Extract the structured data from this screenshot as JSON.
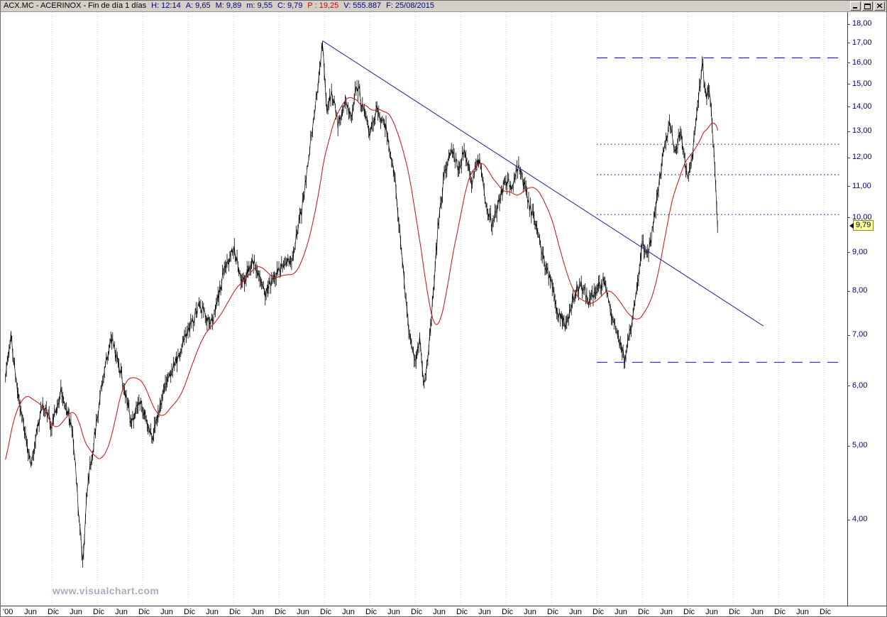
{
  "window": {
    "title_segments": [
      {
        "text": "ACX.MC - ACERINOX - Fin de día 1 días",
        "color": "#000000"
      },
      {
        "text": "H: 12:14",
        "color": "#000080"
      },
      {
        "text": "A: 9,65",
        "color": "#000080"
      },
      {
        "text": "M: 9,89",
        "color": "#000080"
      },
      {
        "text": "m: 9,55",
        "color": "#000080"
      },
      {
        "text": "C: 9,79",
        "color": "#000080"
      },
      {
        "text": "P : 19,25",
        "color": "#cc0000"
      },
      {
        "text": "V: 555.887",
        "color": "#000080"
      },
      {
        "text": "F: 25/08/2015",
        "color": "#000080"
      }
    ],
    "icons": {
      "minimize": "minimize-icon",
      "maximize": "maximize-icon",
      "close": "close-icon"
    }
  },
  "watermark": "www.visualchart.com",
  "chart_data": {
    "type": "line",
    "symbol": "ACX.MC",
    "name": "ACERINOX",
    "timeframe": "Fin de día 1 días",
    "scale": "logarithmic",
    "grid": "vertical-yearly-dotted",
    "grid_color": "#d2d5e4",
    "level_color": "#2424c8",
    "y_ticks": [
      18,
      17,
      16,
      15,
      14,
      13,
      12,
      11,
      10,
      9,
      8,
      7,
      6,
      5,
      4
    ],
    "y_tick_labels": [
      "18,00",
      "17,00",
      "16,00",
      "15,00",
      "14,00",
      "13,00",
      "12,00",
      "11,00",
      "10,00",
      "9,00",
      "8,00",
      "7,00",
      "6,00",
      "5,00",
      "4,00"
    ],
    "x_tick_labels": [
      "'00",
      "Jun",
      "Dic",
      "Jun",
      "Dic",
      "Jun",
      "Dic",
      "Jun",
      "Dic",
      "Jun",
      "Dic",
      "Jun",
      "Dic",
      "Jun",
      "Dic",
      "Jun",
      "Dic",
      "Jun",
      "Dic",
      "Jun",
      "Dic",
      "Jun",
      "Dic",
      "Jun",
      "Dic",
      "Jun",
      "Dic",
      "Jun",
      "Dic",
      "Jun",
      "Dic",
      "Jun",
      "Dic",
      "Jun",
      "Dic",
      "Jun",
      "Dic"
    ],
    "x_range_years": [
      2000.0,
      2018.4
    ],
    "price_anchors": [
      [
        1999.2,
        3.9
      ],
      [
        1999.55,
        4.5
      ],
      [
        1999.85,
        5.6
      ],
      [
        2000.0,
        6.3
      ],
      [
        2000.1,
        7.0
      ],
      [
        2000.3,
        5.6
      ],
      [
        2000.55,
        4.75
      ],
      [
        2000.8,
        5.7
      ],
      [
        2001.0,
        5.3
      ],
      [
        2001.2,
        5.9
      ],
      [
        2001.45,
        5.3
      ],
      [
        2001.68,
        3.5
      ],
      [
        2001.78,
        4.4
      ],
      [
        2001.95,
        5.2
      ],
      [
        2002.1,
        6.0
      ],
      [
        2002.3,
        7.0
      ],
      [
        2002.5,
        6.3
      ],
      [
        2002.75,
        5.4
      ],
      [
        2002.95,
        5.7
      ],
      [
        2003.2,
        5.1
      ],
      [
        2003.5,
        6.0
      ],
      [
        2003.8,
        6.6
      ],
      [
        2004.0,
        7.1
      ],
      [
        2004.25,
        7.7
      ],
      [
        2004.5,
        7.2
      ],
      [
        2004.8,
        8.5
      ],
      [
        2005.0,
        9.1
      ],
      [
        2005.2,
        8.2
      ],
      [
        2005.45,
        8.8
      ],
      [
        2005.7,
        7.9
      ],
      [
        2006.0,
        8.6
      ],
      [
        2006.3,
        8.9
      ],
      [
        2006.5,
        10.2
      ],
      [
        2006.65,
        12.0
      ],
      [
        2006.8,
        14.0
      ],
      [
        2006.97,
        17.05
      ],
      [
        2007.05,
        13.9
      ],
      [
        2007.17,
        14.6
      ],
      [
        2007.3,
        13.3
      ],
      [
        2007.45,
        14.2
      ],
      [
        2007.58,
        13.6
      ],
      [
        2007.72,
        15.05
      ],
      [
        2007.85,
        14.0
      ],
      [
        2008.0,
        13.0
      ],
      [
        2008.15,
        13.9
      ],
      [
        2008.35,
        13.2
      ],
      [
        2008.55,
        11.5
      ],
      [
        2008.7,
        9.0
      ],
      [
        2008.85,
        7.2
      ],
      [
        2009.0,
        6.4
      ],
      [
        2009.1,
        6.9
      ],
      [
        2009.2,
        6.05
      ],
      [
        2009.35,
        7.2
      ],
      [
        2009.5,
        9.6
      ],
      [
        2009.65,
        11.5
      ],
      [
        2009.8,
        12.4
      ],
      [
        2009.95,
        11.6
      ],
      [
        2010.1,
        12.3
      ],
      [
        2010.25,
        11.2
      ],
      [
        2010.42,
        12.0
      ],
      [
        2010.57,
        10.4
      ],
      [
        2010.7,
        9.8
      ],
      [
        2010.85,
        10.6
      ],
      [
        2011.0,
        11.2
      ],
      [
        2011.15,
        11.0
      ],
      [
        2011.3,
        11.7
      ],
      [
        2011.5,
        10.4
      ],
      [
        2011.68,
        9.8
      ],
      [
        2011.85,
        8.7
      ],
      [
        2012.0,
        8.2
      ],
      [
        2012.15,
        7.5
      ],
      [
        2012.32,
        7.2
      ],
      [
        2012.5,
        7.9
      ],
      [
        2012.65,
        8.2
      ],
      [
        2012.82,
        7.8
      ],
      [
        2013.0,
        8.0
      ],
      [
        2013.15,
        8.3
      ],
      [
        2013.35,
        7.4
      ],
      [
        2013.55,
        6.7
      ],
      [
        2013.63,
        6.55
      ],
      [
        2013.8,
        7.4
      ],
      [
        2014.0,
        9.2
      ],
      [
        2014.15,
        9.0
      ],
      [
        2014.3,
        10.3
      ],
      [
        2014.45,
        12.0
      ],
      [
        2014.6,
        13.3
      ],
      [
        2014.72,
        12.3
      ],
      [
        2014.85,
        12.9
      ],
      [
        2015.0,
        11.2
      ],
      [
        2015.1,
        12.1
      ],
      [
        2015.22,
        14.0
      ],
      [
        2015.33,
        16.0
      ],
      [
        2015.4,
        14.4
      ],
      [
        2015.47,
        14.9
      ],
      [
        2015.55,
        13.0
      ],
      [
        2015.6,
        11.6
      ],
      [
        2015.64,
        10.3
      ],
      [
        2015.66,
        9.79
      ]
    ],
    "moving_average": {
      "color": "#d02020",
      "window_points": 40
    },
    "trendline": {
      "x1": 2006.97,
      "p1": 17.1,
      "x2": 2016.67,
      "p2": 7.2,
      "color": "#2a2aa8"
    },
    "levels": [
      {
        "price": 16.25,
        "style": "dash",
        "from_year": 2013.0
      },
      {
        "price": 12.5,
        "style": "dot",
        "from_year": 2013.0
      },
      {
        "price": 11.4,
        "style": "dot",
        "from_year": 2013.0
      },
      {
        "price": 10.1,
        "style": "dot",
        "from_year": 2013.0
      },
      {
        "price": 6.45,
        "style": "dash",
        "from_year": 2013.0
      }
    ],
    "last_quote": {
      "time": "12:14",
      "open": "9,65",
      "high": "9,89",
      "low": "9,55",
      "close": "9,79",
      "p": "19,25",
      "volume": "555.887",
      "date": "25/08/2015",
      "close_value": 9.79,
      "high_value": 9.89,
      "low_value": 9.55
    }
  }
}
